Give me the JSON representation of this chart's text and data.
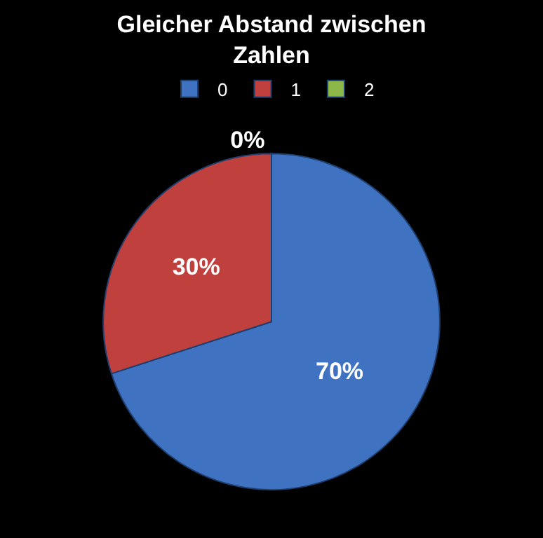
{
  "chart_data": {
    "type": "pie",
    "title": "Gleicher Abstand zwischen Zahlen",
    "categories": [
      "0",
      "1",
      "2"
    ],
    "values": [
      70,
      30,
      0
    ],
    "colors": [
      "#3f73c1",
      "#c0403d",
      "#8cb84a"
    ],
    "value_labels": [
      "70%",
      "30%",
      "0%"
    ],
    "legend": "top"
  }
}
